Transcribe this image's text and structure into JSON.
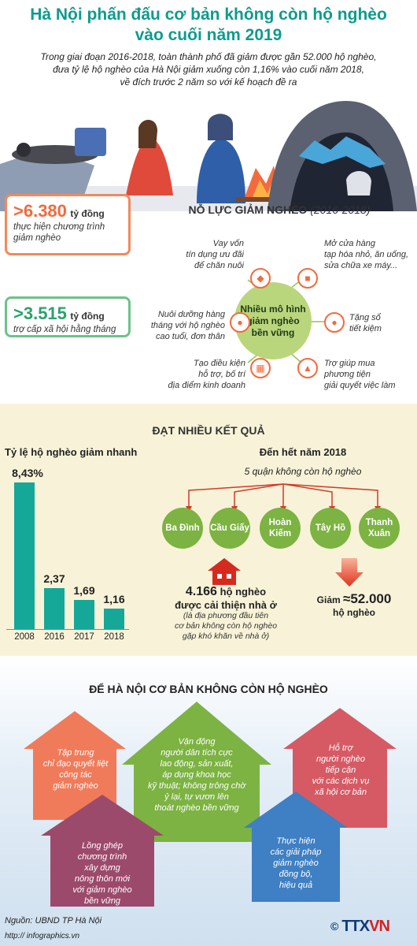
{
  "title_line1": "Hà Nội phấn đấu cơ bản không còn hộ nghèo",
  "title_line2": "vào cuối năm 2019",
  "intro": [
    "Trong giai đoạn 2016-2018, toàn thành phố đã giảm được gần 52.000 hộ nghèo,",
    "đưa tỷ lệ hộ nghèo của Hà Nội giảm xuống còn 1,16% vào cuối năm 2018,",
    "về đích trước 2 năm so với kế hoạch đề ra"
  ],
  "stats": [
    {
      "value": ">6.380",
      "unit": "tỷ đồng",
      "desc_line1": "thực hiện chương trình",
      "desc_line2": "giảm nghèo"
    },
    {
      "value": ">3.515",
      "unit": "tỷ đồng",
      "desc_line1": "trợ cấp xã hội hằng tháng",
      "desc_line2": ""
    }
  ],
  "effort": {
    "title": "NỖ LỰC GIẢM NGHÈO",
    "period": "(2016-2018)",
    "hub_line1": "Nhiều mô hình",
    "hub_line2": "giảm nghèo",
    "hub_line3": "bền vững",
    "items": [
      {
        "l1": "Vay vốn",
        "l2": "tín dụng ưu đãi",
        "l3": "để chăn nuôi",
        "icon": "pig-icon"
      },
      {
        "l1": "Mở cửa hàng",
        "l2": "tạp hóa nhỏ, ăn uống,",
        "l3": "sửa chữa xe máy...",
        "icon": "shop-icon"
      },
      {
        "l1": "Nuôi dưỡng hàng",
        "l2": "tháng với hộ nghèo",
        "l3": "cao tuổi, đơn thân",
        "icon": "elder-icon"
      },
      {
        "l1": "Tặng sổ",
        "l2": "tiết kiệm",
        "l3": "",
        "icon": "piggy-bank-icon"
      },
      {
        "l1": "Tạo điều kiện",
        "l2": "hỗ trợ, bố trí",
        "l3": "địa điểm kinh doanh",
        "icon": "building-icon"
      },
      {
        "l1": "Trợ giúp mua",
        "l2": "phương tiện",
        "l3": "giải quyết việc làm",
        "icon": "vehicle-icon"
      }
    ]
  },
  "results": {
    "title": "ĐẠT NHIỀU KẾT QUẢ",
    "chart_title": "Tỷ lệ hộ nghèo giảm nhanh",
    "year_title": "Đến hết năm 2018",
    "district_sub": "5 quận không còn hộ nghèo",
    "districts": [
      {
        "l1": "Ba Đình",
        "l2": ""
      },
      {
        "l1": "Cầu Giấy",
        "l2": ""
      },
      {
        "l1": "Hoàn",
        "l2": "Kiếm"
      },
      {
        "l1": "Tây Hồ",
        "l2": ""
      },
      {
        "l1": "Thanh",
        "l2": "Xuân"
      }
    ],
    "house_value": "4.166",
    "house_unit": "hộ nghèo",
    "house_line2": "được cải thiện nhà ở",
    "house_note1": "(là địa phương đầu tiên",
    "house_note2": "cơ bản không còn hộ nghèo",
    "house_note3": "gặp khó khăn về nhà ở)",
    "drop_prefix": "Giảm",
    "drop_value": "≈52.000",
    "drop_unit": "hộ nghèo"
  },
  "chart_data": {
    "type": "bar",
    "categories": [
      "2008",
      "2016",
      "2017",
      "2018"
    ],
    "values": [
      8.43,
      2.37,
      1.69,
      1.16
    ],
    "value_labels": [
      "8,43%",
      "2,37",
      "1,69",
      "1,16"
    ],
    "title": "Tỷ lệ hộ nghèo giảm nhanh",
    "ylim": [
      0,
      8.43
    ],
    "grid": false,
    "color": "#15a898"
  },
  "bottom": {
    "title": "ĐỂ HÀ NỘI CƠ BẢN KHÔNG CÒN HỘ NGHÈO",
    "houses": [
      {
        "lines": [
          "Tập trung",
          "chỉ đạo quyết liệt",
          "công tác",
          "giảm nghèo"
        ],
        "color": "#f07b5a"
      },
      {
        "lines": [
          "Vận động",
          "người dân tích cực",
          "lao động, sản xuất,",
          "áp dụng khoa học",
          "kỹ thuật; không trông chờ",
          "ỷ lại, tự vươn lên",
          "thoát nghèo bền vững"
        ],
        "color": "#7cb342"
      },
      {
        "lines": [
          "Hỗ trợ",
          "người nghèo",
          "tiếp cận",
          "với các dịch vụ",
          "xã hội cơ bản"
        ],
        "color": "#d65a64"
      },
      {
        "lines": [
          "Lồng ghép",
          "chương trình",
          "xây dựng",
          "nông thôn mới",
          "với giảm nghèo",
          "bền vững"
        ],
        "color": "#9c4a6b"
      },
      {
        "lines": [
          "Thực hiện",
          "các giải pháp",
          "giảm nghèo",
          "đồng bộ,",
          "hiệu quả"
        ],
        "color": "#3f7fc4"
      }
    ]
  },
  "footer": {
    "source": "Nguồn: UBND TP Hà Nội",
    "site": "http:// infographics.vn",
    "logo_a": "TTX",
    "logo_b": "VN"
  },
  "colors": {
    "teal": "#0f9b8e",
    "orange": "#f26a3d",
    "green": "#7cb342"
  }
}
